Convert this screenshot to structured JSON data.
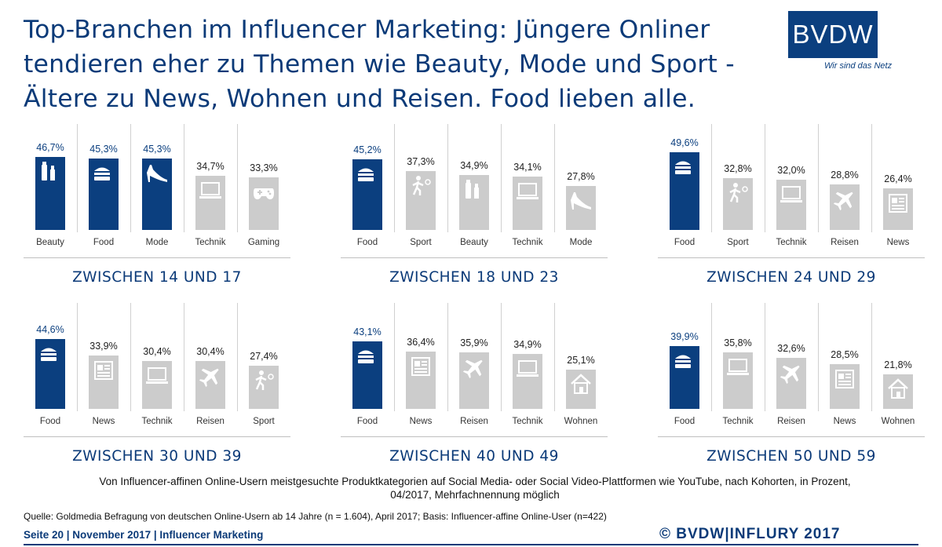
{
  "title": {
    "line1": "Top-Branchen im Influencer Marketing: Jüngere Onliner",
    "line2": "tendieren eher zu Themen wie Beauty, Mode und Sport -",
    "line3": "Ältere zu News, Wohnen und Reisen. Food lieben alle."
  },
  "logo": {
    "text": "BVDW",
    "tagline": "Wir sind das Netz"
  },
  "colors": {
    "highlight": "#0b3f7f",
    "neutral": "#cccccc",
    "accent_text": "#0b3a78"
  },
  "chart_data": [
    {
      "type": "bar",
      "group_label": "ZWISCHEN 14 UND 17",
      "categories": [
        "Beauty",
        "Food",
        "Mode",
        "Technik",
        "Gaming"
      ],
      "values": [
        46.7,
        45.3,
        45.3,
        34.7,
        33.3
      ],
      "value_labels": [
        "46,7%",
        "45,3%",
        "45,3%",
        "34,7%",
        "33,3%"
      ],
      "highlighted": [
        true,
        true,
        true,
        false,
        false
      ],
      "icons": [
        "beauty-icon",
        "food-icon",
        "mode-icon",
        "technik-icon",
        "gaming-icon"
      ],
      "ylim": [
        0,
        55
      ]
    },
    {
      "type": "bar",
      "group_label": "ZWISCHEN 18 UND 23",
      "categories": [
        "Food",
        "Sport",
        "Beauty",
        "Technik",
        "Mode"
      ],
      "values": [
        45.2,
        37.3,
        34.9,
        34.1,
        27.8
      ],
      "value_labels": [
        "45,2%",
        "37,3%",
        "34,9%",
        "34,1%",
        "27,8%"
      ],
      "highlighted": [
        true,
        false,
        false,
        false,
        false
      ],
      "icons": [
        "food-icon",
        "sport-icon",
        "beauty-icon",
        "technik-icon",
        "mode-icon"
      ],
      "ylim": [
        0,
        55
      ]
    },
    {
      "type": "bar",
      "group_label": "ZWISCHEN 24 UND 29",
      "categories": [
        "Food",
        "Sport",
        "Technik",
        "Reisen",
        "News"
      ],
      "values": [
        49.6,
        32.8,
        32.0,
        28.8,
        26.4
      ],
      "value_labels": [
        "49,6%",
        "32,8%",
        "32,0%",
        "28,8%",
        "26,4%"
      ],
      "highlighted": [
        true,
        false,
        false,
        false,
        false
      ],
      "icons": [
        "food-icon",
        "sport-icon",
        "technik-icon",
        "reisen-icon",
        "news-icon"
      ],
      "ylim": [
        0,
        55
      ]
    },
    {
      "type": "bar",
      "group_label": "ZWISCHEN 30 UND 39",
      "categories": [
        "Food",
        "News",
        "Technik",
        "Reisen",
        "Sport"
      ],
      "values": [
        44.6,
        33.9,
        30.4,
        30.4,
        27.4
      ],
      "value_labels": [
        "44,6%",
        "33,9%",
        "30,4%",
        "30,4%",
        "27,4%"
      ],
      "highlighted": [
        true,
        false,
        false,
        false,
        false
      ],
      "icons": [
        "food-icon",
        "news-icon",
        "technik-icon",
        "reisen-icon",
        "sport-icon"
      ],
      "ylim": [
        0,
        55
      ]
    },
    {
      "type": "bar",
      "group_label": "ZWISCHEN 40 UND 49",
      "categories": [
        "Food",
        "News",
        "Reisen",
        "Technik",
        "Wohnen"
      ],
      "values": [
        43.1,
        36.4,
        35.9,
        34.9,
        25.1
      ],
      "value_labels": [
        "43,1%",
        "36,4%",
        "35,9%",
        "34,9%",
        "25,1%"
      ],
      "highlighted": [
        true,
        false,
        false,
        false,
        false
      ],
      "icons": [
        "food-icon",
        "news-icon",
        "reisen-icon",
        "technik-icon",
        "wohnen-icon"
      ],
      "ylim": [
        0,
        55
      ]
    },
    {
      "type": "bar",
      "group_label": "ZWISCHEN 50 UND 59",
      "categories": [
        "Food",
        "Technik",
        "Reisen",
        "News",
        "Wohnen"
      ],
      "values": [
        39.9,
        35.8,
        32.6,
        28.5,
        21.8
      ],
      "value_labels": [
        "39,9%",
        "35,8%",
        "32,6%",
        "28,5%",
        "21,8%"
      ],
      "highlighted": [
        true,
        false,
        false,
        false,
        false
      ],
      "icons": [
        "food-icon",
        "technik-icon",
        "reisen-icon",
        "news-icon",
        "wohnen-icon"
      ],
      "ylim": [
        0,
        55
      ]
    }
  ],
  "footnote": {
    "line1": "Von Influencer-affinen Online-Usern meistgesuchte Produktkategorien auf Social Media- oder Social Video-Plattformen wie YouTube, nach Kohorten, in Prozent,",
    "line2": "04/2017, Mehrfachnennung möglich"
  },
  "source": "Quelle: Goldmedia Befragung von deutschen Online-Usern ab 14 Jahre (n = 1.604), April 2017; Basis: Influencer-affine Online-User (n=422)",
  "footer": {
    "left": "Seite 20 | November 2017 | Influencer Marketing",
    "right": "© BVDW|INFLURY 2017"
  }
}
